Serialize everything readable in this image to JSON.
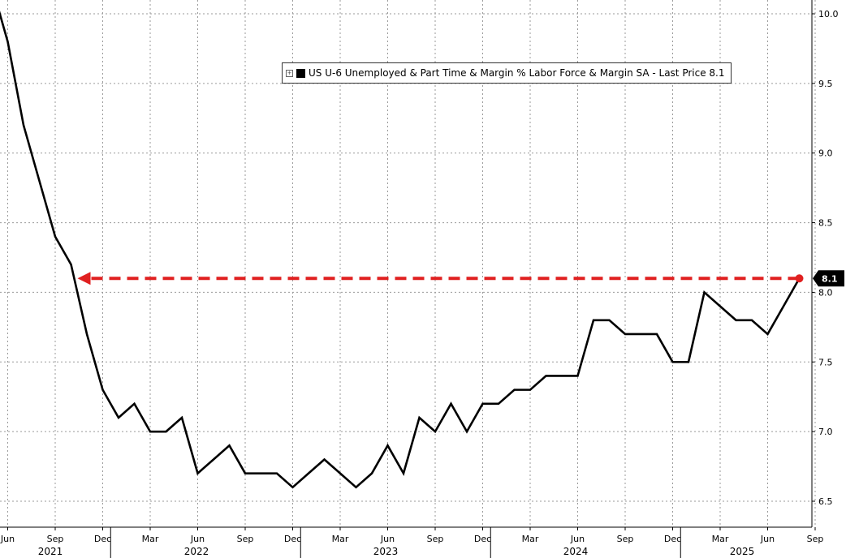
{
  "chart_data": {
    "type": "line",
    "title": "",
    "xlabel": "",
    "ylabel": "",
    "legend": {
      "label": "US U-6 Unemployed & Part Time & Margin % Labor Force & Margin SA - Last Price 8.1",
      "placement": "top-center"
    },
    "ylim": [
      6.3,
      10.1
    ],
    "y_ticks": [
      "10.0",
      "9.5",
      "9.0",
      "8.5",
      "8.0",
      "7.5",
      "7.0",
      "6.5"
    ],
    "x_ticks": [
      "Jun",
      "Sep",
      "Dec",
      "Mar",
      "Jun",
      "Sep",
      "Dec",
      "Mar",
      "Jun",
      "Sep",
      "Dec",
      "Mar",
      "Jun",
      "Sep",
      "Dec",
      "Mar",
      "Jun",
      "Sep"
    ],
    "years": [
      "2021",
      "2022",
      "2023",
      "2024",
      "2025"
    ],
    "grid": true,
    "series": [
      {
        "color": "#000000",
        "x": [
          "2021-05",
          "2021-06",
          "2021-07",
          "2021-08",
          "2021-09",
          "2021-10",
          "2021-11",
          "2021-12",
          "2022-01",
          "2022-02",
          "2022-03",
          "2022-04",
          "2022-05",
          "2022-06",
          "2022-07",
          "2022-08",
          "2022-09",
          "2022-10",
          "2022-11",
          "2022-12",
          "2023-01",
          "2023-02",
          "2023-03",
          "2023-04",
          "2023-05",
          "2023-06",
          "2023-07",
          "2023-08",
          "2023-09",
          "2023-10",
          "2023-11",
          "2023-12",
          "2024-01",
          "2024-02",
          "2024-03",
          "2024-04",
          "2024-05",
          "2024-06",
          "2024-07",
          "2024-08",
          "2024-09",
          "2024-10",
          "2024-11",
          "2024-12",
          "2025-01",
          "2025-02",
          "2025-03",
          "2025-04",
          "2025-05",
          "2025-06",
          "2025-07",
          "2025-08"
        ],
        "values": [
          10.2,
          9.8,
          9.2,
          8.8,
          8.4,
          8.2,
          7.7,
          7.3,
          7.1,
          7.2,
          7.0,
          7.0,
          7.1,
          6.7,
          6.8,
          6.9,
          6.7,
          6.7,
          6.7,
          6.6,
          6.7,
          6.8,
          6.7,
          6.6,
          6.7,
          6.9,
          6.7,
          7.1,
          7.0,
          7.2,
          7.0,
          7.2,
          7.2,
          7.3,
          7.3,
          7.4,
          7.4,
          7.4,
          7.8,
          7.8,
          7.7,
          7.7,
          7.7,
          7.5,
          7.5,
          8.0,
          7.9,
          7.8,
          7.8,
          7.7,
          7.9,
          8.1
        ]
      }
    ],
    "last_value_label": "8.1",
    "annotation": {
      "type": "dashed-arrow",
      "color": "#e02020",
      "value": 8.1,
      "from": "2025-08",
      "to": "2021-10"
    }
  }
}
